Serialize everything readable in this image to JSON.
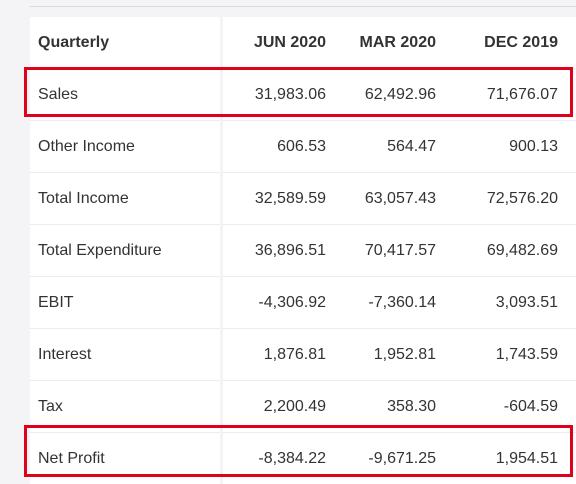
{
  "table": {
    "headers": [
      "Quarterly",
      "JUN 2020",
      "MAR 2020",
      "DEC 2019"
    ],
    "rows": [
      {
        "label": "Sales",
        "values": [
          "31,983.06",
          "62,492.96",
          "71,676.07"
        ],
        "highlighted": true
      },
      {
        "label": "Other Income",
        "values": [
          "606.53",
          "564.47",
          "900.13"
        ],
        "highlighted": false
      },
      {
        "label": "Total Income",
        "values": [
          "32,589.59",
          "63,057.43",
          "72,576.20"
        ],
        "highlighted": false
      },
      {
        "label": "Total Expenditure",
        "values": [
          "36,896.51",
          "70,417.57",
          "69,482.69"
        ],
        "highlighted": false
      },
      {
        "label": "EBIT",
        "values": [
          "-4,306.92",
          "-7,360.14",
          "3,093.51"
        ],
        "highlighted": false
      },
      {
        "label": "Interest",
        "values": [
          "1,876.81",
          "1,952.81",
          "1,743.59"
        ],
        "highlighted": false
      },
      {
        "label": "Tax",
        "values": [
          "2,200.49",
          "358.30",
          "-604.59"
        ],
        "highlighted": false
      },
      {
        "label": "Net Profit",
        "values": [
          "-8,384.22",
          "-9,671.25",
          "1,954.51"
        ],
        "highlighted": true
      }
    ]
  },
  "colors": {
    "highlight_border": "#e0001b",
    "text": "#333333",
    "header_text": "#1e2a3a",
    "page_background": "#f4f4f6",
    "cell_background": "#ffffff"
  }
}
